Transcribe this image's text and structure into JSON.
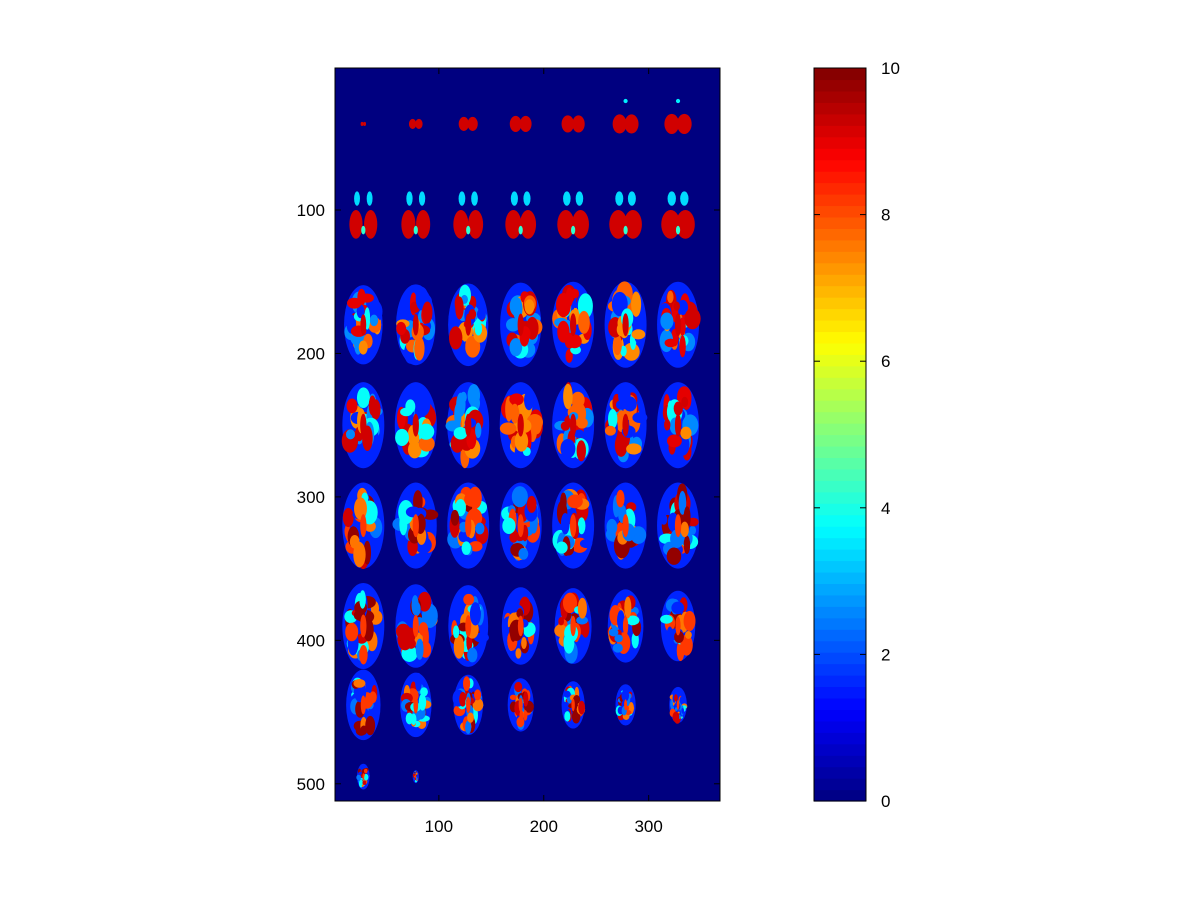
{
  "chart_data": [
    {
      "type": "heatmap",
      "title": "",
      "xlabel": "",
      "ylabel": "",
      "xlim": [
        1,
        368
      ],
      "ylim": [
        1,
        512
      ],
      "y_reversed": true,
      "x_ticks": [
        100,
        200,
        300
      ],
      "y_ticks": [
        100,
        200,
        300,
        400,
        500
      ],
      "x_tick_labels": [
        "100",
        "200",
        "300"
      ],
      "y_tick_labels": [
        "100",
        "200",
        "300",
        "400",
        "500"
      ],
      "colormap": "jet",
      "clim": [
        0,
        10
      ],
      "background_value": 0,
      "grid": false,
      "mosaic": {
        "columns": 7,
        "rows": 8,
        "column_centers": [
          28,
          78,
          128,
          178,
          228,
          278,
          328
        ],
        "row_centers": [
          40,
          110,
          180,
          250,
          320,
          390,
          445,
          495
        ]
      }
    },
    {
      "type": "colorbar",
      "range": [
        0,
        10
      ],
      "ticks": [
        0,
        2,
        4,
        6,
        8,
        10
      ],
      "tick_labels": [
        "0",
        "2",
        "4",
        "6",
        "8",
        "10"
      ],
      "colormap": "jet",
      "levels": 64
    }
  ]
}
